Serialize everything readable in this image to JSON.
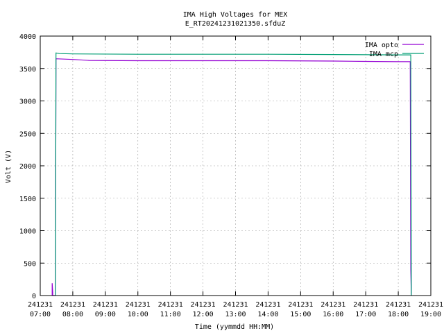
{
  "chart_data": {
    "type": "line",
    "title": "IMA High Voltages for MEX",
    "subtitle": "E_RT20241231021350.sfduZ",
    "xlabel": "Time (yymmdd HH:MM)",
    "ylabel": "Volt (V)",
    "xlim": [
      "2024-12-31 07:00",
      "2024-12-31 19:00"
    ],
    "ylim": [
      0,
      4000
    ],
    "grid": true,
    "legend_position": "top-right",
    "x_ticks": [
      {
        "date": "241231",
        "time": "07:00"
      },
      {
        "date": "241231",
        "time": "08:00"
      },
      {
        "date": "241231",
        "time": "09:00"
      },
      {
        "date": "241231",
        "time": "10:00"
      },
      {
        "date": "241231",
        "time": "11:00"
      },
      {
        "date": "241231",
        "time": "12:00"
      },
      {
        "date": "241231",
        "time": "13:00"
      },
      {
        "date": "241231",
        "time": "14:00"
      },
      {
        "date": "241231",
        "time": "15:00"
      },
      {
        "date": "241231",
        "time": "16:00"
      },
      {
        "date": "241231",
        "time": "17:00"
      },
      {
        "date": "241231",
        "time": "18:00"
      },
      {
        "date": "241231",
        "time": "19:00"
      }
    ],
    "y_ticks": [
      0,
      500,
      1000,
      1500,
      2000,
      2500,
      3000,
      3500,
      4000
    ],
    "series": [
      {
        "name": "IMA opto",
        "color": "#9400d3",
        "points": [
          [
            "2024-12-31 07:22",
            0
          ],
          [
            "2024-12-31 07:22",
            190
          ],
          [
            "2024-12-31 07:23",
            50
          ],
          [
            "2024-12-31 07:23",
            0
          ],
          [
            "2024-12-31 07:28",
            0
          ],
          [
            "2024-12-31 07:29",
            3650
          ],
          [
            "2024-12-31 08:00",
            3640
          ],
          [
            "2024-12-31 08:30",
            3625
          ],
          [
            "2024-12-31 10:00",
            3620
          ],
          [
            "2024-12-31 12:00",
            3620
          ],
          [
            "2024-12-31 14:00",
            3620
          ],
          [
            "2024-12-31 16:00",
            3615
          ],
          [
            "2024-12-31 17:00",
            3610
          ],
          [
            "2024-12-31 18:00",
            3605
          ],
          [
            "2024-12-31 18:22",
            3605
          ],
          [
            "2024-12-31 18:23",
            400
          ],
          [
            "2024-12-31 18:24",
            0
          ]
        ]
      },
      {
        "name": "IMA mcp",
        "color": "#009e73",
        "points": [
          [
            "2024-12-31 07:28",
            0
          ],
          [
            "2024-12-31 07:29",
            3740
          ],
          [
            "2024-12-31 07:35",
            3730
          ],
          [
            "2024-12-31 08:00",
            3725
          ],
          [
            "2024-12-31 10:00",
            3720
          ],
          [
            "2024-12-31 12:00",
            3720
          ],
          [
            "2024-12-31 14:00",
            3720
          ],
          [
            "2024-12-31 16:00",
            3715
          ],
          [
            "2024-12-31 18:00",
            3710
          ],
          [
            "2024-12-31 18:23",
            3710
          ],
          [
            "2024-12-31 18:24",
            0
          ]
        ]
      }
    ]
  }
}
